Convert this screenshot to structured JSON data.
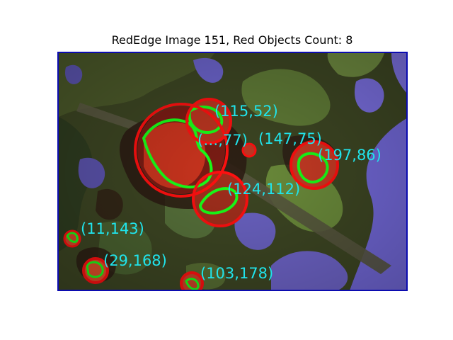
{
  "figure": {
    "title": "RedEdge Image 151, Red Objects Count: 8"
  },
  "image": {
    "description_colors": {
      "circle": "#ff1010",
      "contour": "#19ff19",
      "label": "#20e4ec",
      "frame": "#0b0bb0"
    }
  },
  "objects": [
    {
      "label": "(115,52)"
    },
    {
      "label": "(…,77)"
    },
    {
      "label": "(147,75)"
    },
    {
      "label": "(197,86)"
    },
    {
      "label": "(124,112)"
    },
    {
      "label": "(11,143)"
    },
    {
      "label": "(29,168)"
    },
    {
      "label": "(103,178)"
    }
  ]
}
